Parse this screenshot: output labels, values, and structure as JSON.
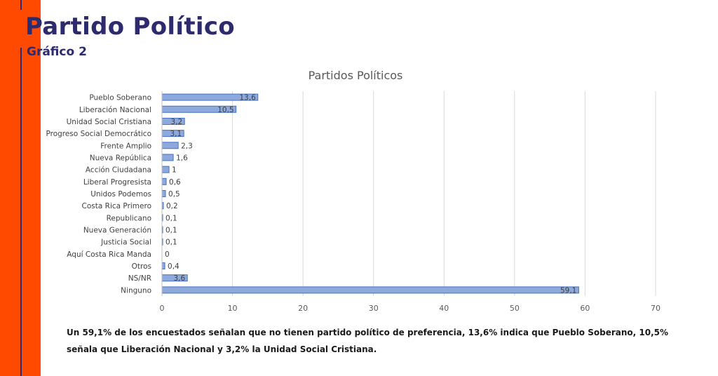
{
  "header": {
    "title": "Partido Político",
    "subtitle": "Gráfico 2"
  },
  "colors": {
    "accent_orange": "#FF4A00",
    "navy": "#2E2A6E",
    "bar_fill": "#8EA9DB",
    "bar_stroke": "#4472C4"
  },
  "chart_data": {
    "type": "bar",
    "orientation": "horizontal",
    "title": "Partidos Políticos",
    "categories": [
      "Pueblo Soberano",
      "Liberación Nacional",
      "Unidad Social Cristiana",
      "Progreso Social Democrático",
      "Frente Amplio",
      "Nueva República",
      "Acción Ciudadana",
      "Liberal Progresista",
      "Unidos Podemos",
      "Costa Rica Primero",
      "Republicano",
      "Nueva Generación",
      "Justicia Social",
      "Aquí Costa Rica Manda",
      "Otros",
      "NS/NR",
      "Ninguno"
    ],
    "values": [
      13.6,
      10.5,
      3.2,
      3.1,
      2.3,
      1.6,
      1.0,
      0.6,
      0.5,
      0.2,
      0.1,
      0.1,
      0.1,
      0,
      0.4,
      3.6,
      59.1
    ],
    "labels": [
      "13,6",
      "10,5",
      "3,2",
      "3,1",
      "2,3",
      "1,6",
      "1",
      "0,6",
      "0,5",
      "0,2",
      "0,1",
      "0,1",
      "0,1",
      "0",
      "0,4",
      "3,6",
      "59,1"
    ],
    "xlim": [
      0,
      70
    ],
    "xticks": [
      0,
      10,
      20,
      30,
      40,
      50,
      60,
      70
    ],
    "grid": true,
    "legend": "none"
  },
  "caption": "Un 59,1% de los encuestados señalan que no tienen partido político de preferencia, 13,6% indica que Pueblo Soberano, 10,5% señala que Liberación Nacional y 3,2% la Unidad Social Cristiana."
}
